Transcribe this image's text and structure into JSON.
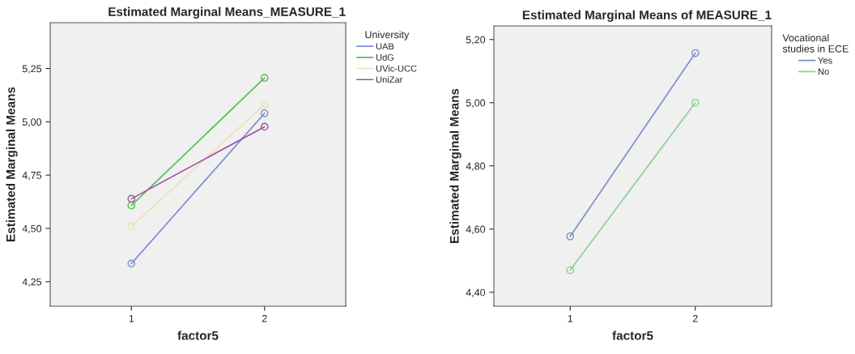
{
  "chart_data": [
    {
      "type": "line",
      "title": "Estimated Marginal Means_MEASURE_1",
      "xlabel": "factor5",
      "ylabel": "Estimated Marginal Means",
      "legend_title": "University",
      "categories": [
        "1",
        "2"
      ],
      "series": [
        {
          "name": "UAB",
          "color": "#7b8fd0",
          "values": [
            4.335,
            5.04
          ]
        },
        {
          "name": "UdG",
          "color": "#4fc24f",
          "values": [
            4.608,
            5.206
          ]
        },
        {
          "name": "UVic-UCC",
          "color": "#e6e2b4",
          "values": [
            4.509,
            5.081
          ]
        },
        {
          "name": "UniZar",
          "color": "#a04fa0",
          "values": [
            4.639,
            4.977
          ]
        }
      ],
      "ylim": [
        4.135,
        5.465
      ],
      "yticks": [
        {
          "value": 4.25,
          "label": "4,25"
        },
        {
          "value": 4.5,
          "label": "4,50"
        },
        {
          "value": 4.75,
          "label": "4,75"
        },
        {
          "value": 5.0,
          "label": "5,00"
        },
        {
          "value": 5.25,
          "label": "5,25"
        }
      ],
      "marker": "circle",
      "line_style": "solid",
      "grid": false,
      "legend": "top right"
    },
    {
      "type": "line",
      "title": "Estimated Marginal Means of MEASURE_1",
      "xlabel": "factor5",
      "ylabel": "Estimated Marginal Means",
      "legend_title": "Vocational\nstudies in ECE",
      "categories": [
        "1",
        "2"
      ],
      "series": [
        {
          "name": "Yes",
          "color": "#7b8fc8",
          "values": [
            4.577,
            5.157
          ]
        },
        {
          "name": "No",
          "color": "#8fd08f",
          "values": [
            4.47,
            5.0
          ]
        }
      ],
      "ylim": [
        4.356,
        5.243
      ],
      "yticks": [
        {
          "value": 4.4,
          "label": "4,40"
        },
        {
          "value": 4.6,
          "label": "4,60"
        },
        {
          "value": 4.8,
          "label": "4,80"
        },
        {
          "value": 5.0,
          "label": "5,00"
        },
        {
          "value": 5.2,
          "label": "5,20"
        }
      ],
      "marker": "circle",
      "line_style": "solid",
      "grid": false,
      "legend": "top right"
    }
  ]
}
